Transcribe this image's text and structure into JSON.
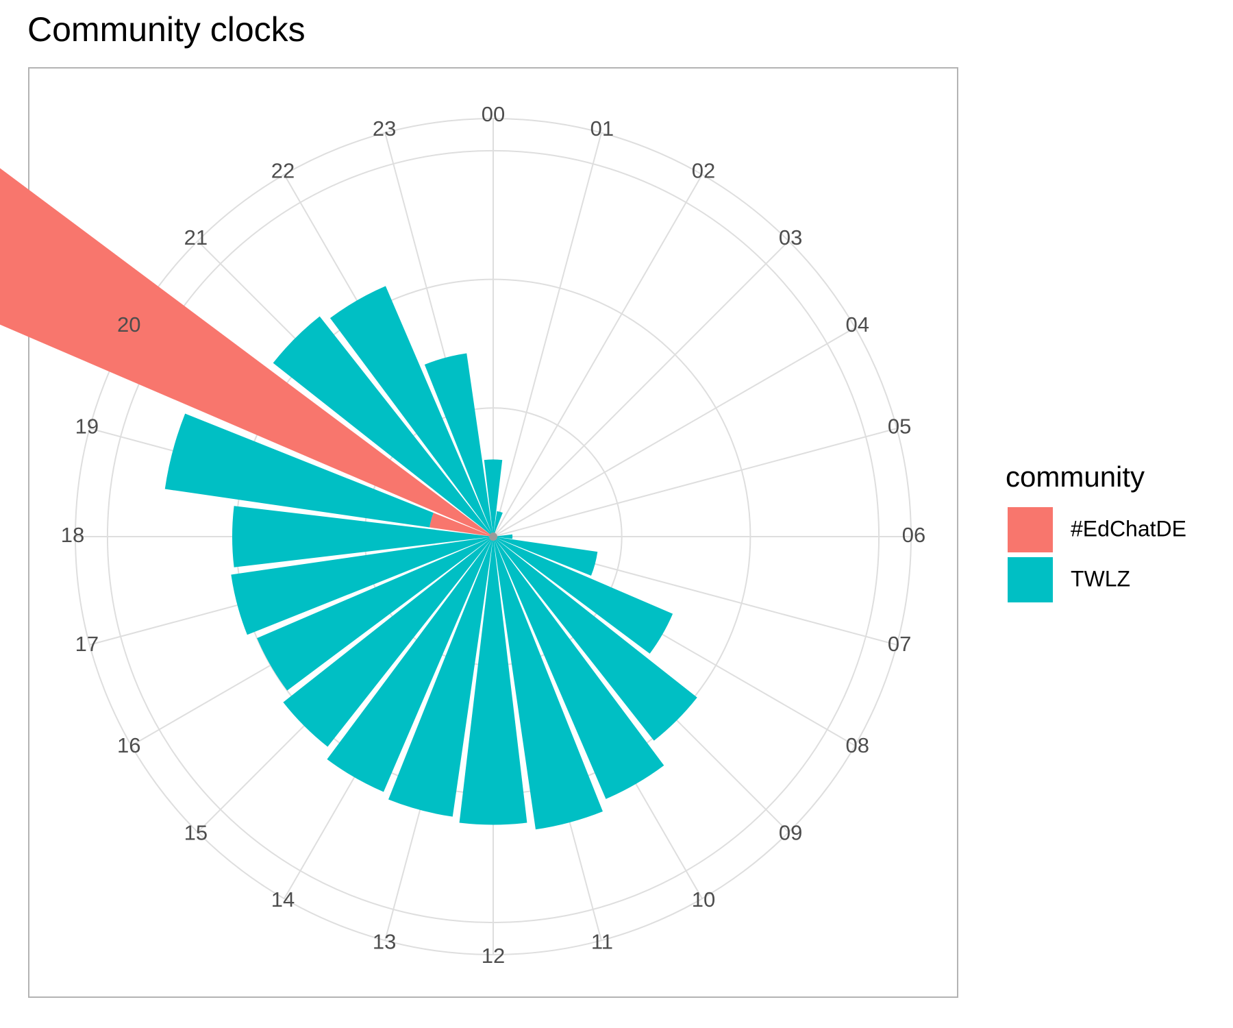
{
  "chart_data": {
    "type": "bar",
    "coord": "polar",
    "title": "Community clocks",
    "categories": [
      "00",
      "01",
      "02",
      "03",
      "04",
      "05",
      "06",
      "07",
      "08",
      "09",
      "10",
      "11",
      "12",
      "13",
      "14",
      "15",
      "16",
      "17",
      "18",
      "19",
      "20",
      "21",
      "22",
      "23"
    ],
    "series": [
      {
        "name": "#EdChatDE",
        "color": "#F8766D",
        "values": [
          0,
          0,
          0,
          0,
          0,
          0,
          0,
          0,
          0,
          0,
          0,
          0,
          0,
          0,
          0,
          0,
          0,
          0,
          0,
          0.5,
          5.0,
          0,
          0,
          0
        ]
      },
      {
        "name": "TWLZ",
        "color": "#00BFC4",
        "values": [
          0.6,
          0.2,
          0,
          0,
          0,
          0,
          0.15,
          0.82,
          1.52,
          2.02,
          2.22,
          2.3,
          2.24,
          2.2,
          2.16,
          2.08,
          2.0,
          2.06,
          2.03,
          2.08,
          2.13,
          2.18,
          2.12,
          1.44
        ]
      }
    ],
    "rlim": [
      0,
      3.25
    ],
    "grid": true,
    "legend": {
      "title": "community",
      "position": "right"
    }
  }
}
